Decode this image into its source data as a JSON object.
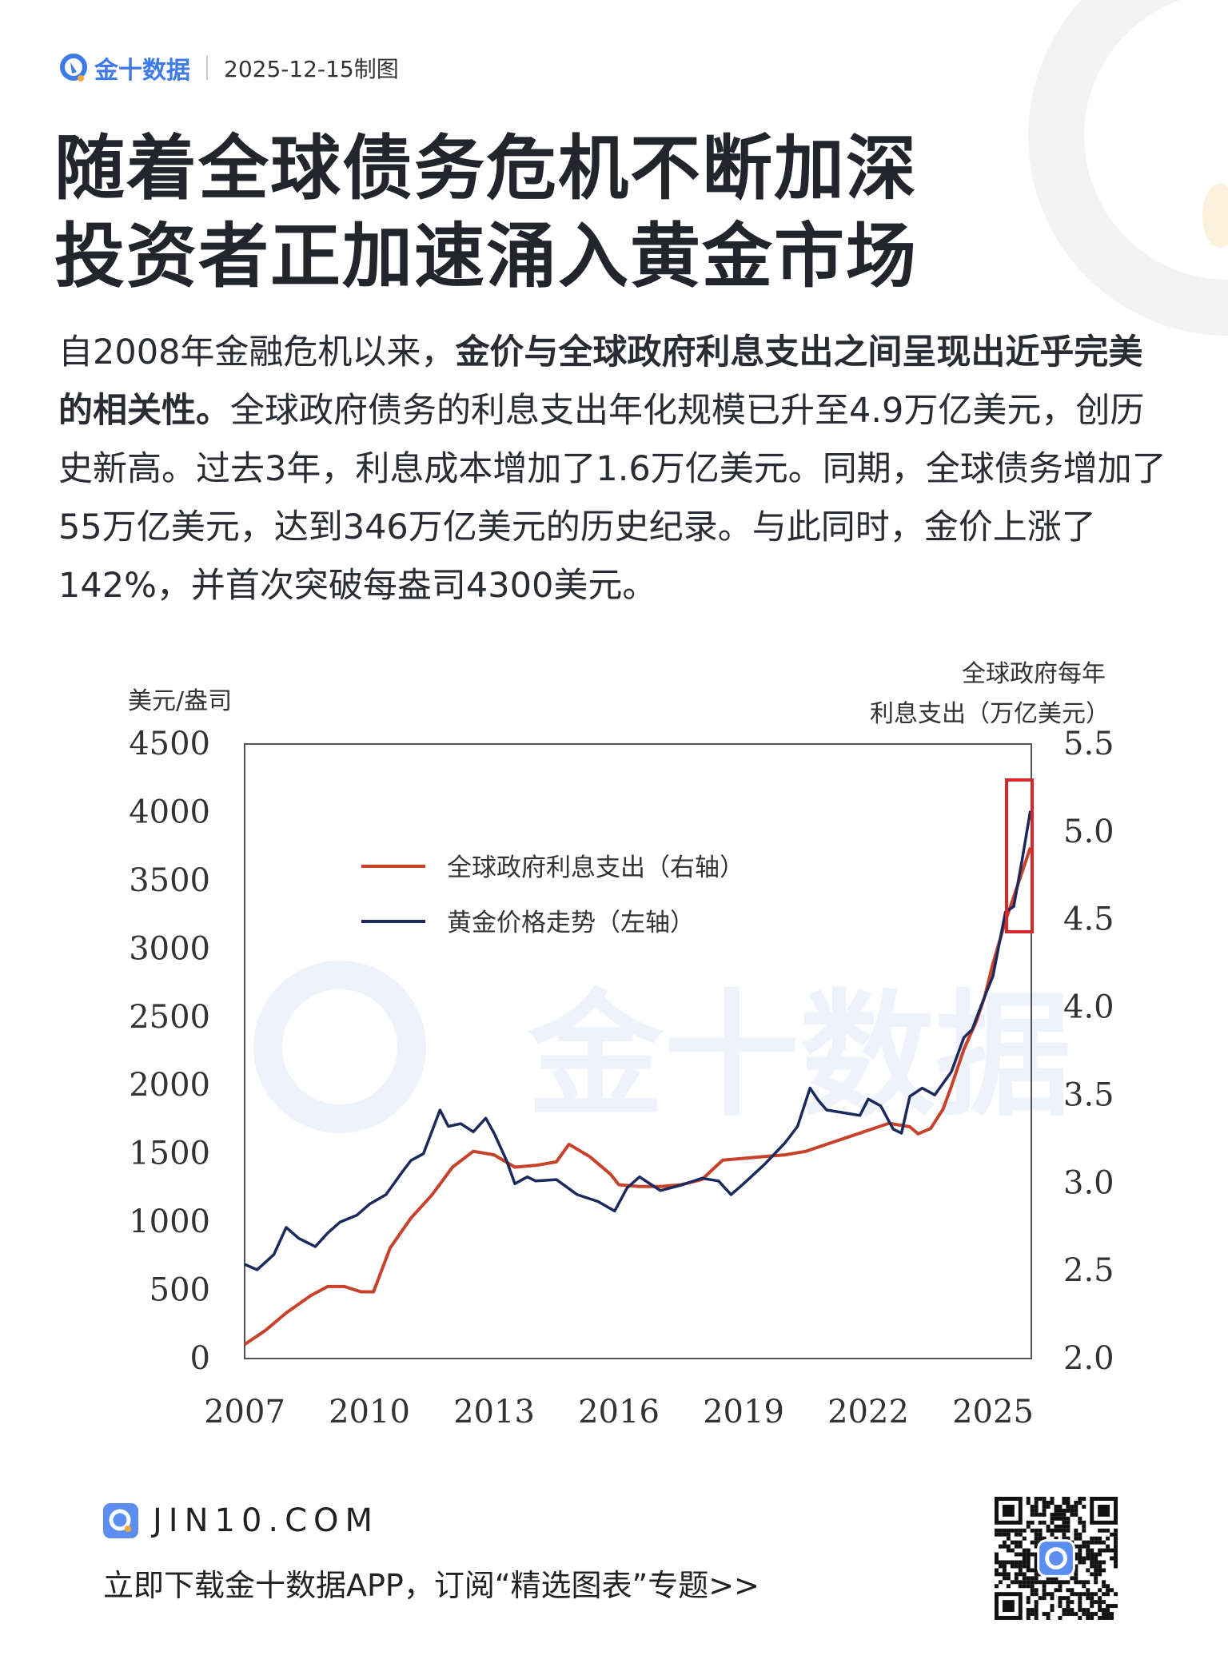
{
  "header": {
    "brand": "金十数据",
    "date": "2025-12-15制图"
  },
  "title": {
    "line1": "随着全球债务危机不断加深",
    "line2": "投资者正加速涌入黄金市场"
  },
  "paragraph": [
    {
      "text": "自2008年金融危机以来，",
      "bold": false
    },
    {
      "text": "金价与全球政府利息支出之间呈现出近乎完美的相关性。",
      "bold": true
    },
    {
      "text": "全球政府债务的利息支出年化规模已升至4.9万亿美元，创历史新高。过去3年，利息成本增加了1.6万亿美元。同期，全球债务增加了55万亿美元，达到346万亿美元的历史纪录。与此同时，金价上涨了142%，并首次突破每盎司4300美元。",
      "bold": false
    }
  ],
  "chart_data": {
    "type": "line",
    "ylabel_left": "美元/盎司",
    "ylabel_right_line1": "全球政府每年",
    "ylabel_right_line2": "利息支出（万亿美元）",
    "xticks": [
      "2007",
      "2010",
      "2013",
      "2016",
      "2019",
      "2022",
      "2025"
    ],
    "xlim": [
      2007,
      2025.92
    ],
    "yticks_left": [
      "0",
      "500",
      "1000",
      "1500",
      "2000",
      "2500",
      "3000",
      "3500",
      "4000",
      "4500"
    ],
    "ylim_left": [
      0,
      4500
    ],
    "yticks_right": [
      "2.0",
      "2.5",
      "3.0",
      "3.5",
      "4.0",
      "4.5",
      "5.0",
      "5.5"
    ],
    "ylim_right": [
      2.0,
      5.5
    ],
    "grid": false,
    "legend_position": "top-left",
    "series": [
      {
        "name": "全球政府利息支出（右轴）",
        "axis": "right",
        "color": "#c8412b",
        "x": [
          2007,
          2007.5,
          2008,
          2008.6,
          2009,
          2009.4,
          2009.8,
          2010.1,
          2010.5,
          2011,
          2011.5,
          2012,
          2012.5,
          2013,
          2013.5,
          2014,
          2014.5,
          2014.8,
          2015.3,
          2015.8,
          2016,
          2016.5,
          2017,
          2017.5,
          2018,
          2018.5,
          2019,
          2019.5,
          2020,
          2020.5,
          2021,
          2021.5,
          2022,
          2022.5,
          2023,
          2023.2,
          2023.5,
          2023.8,
          2024,
          2024.3,
          2024.6,
          2024.8,
          2025,
          2025.3,
          2025.6,
          2025.9
        ],
        "y": [
          2.08,
          2.16,
          2.26,
          2.36,
          2.41,
          2.41,
          2.38,
          2.38,
          2.63,
          2.8,
          2.93,
          3.09,
          3.18,
          3.16,
          3.09,
          3.1,
          3.12,
          3.22,
          3.15,
          3.05,
          2.99,
          2.98,
          2.98,
          2.99,
          3.02,
          3.13,
          3.14,
          3.15,
          3.16,
          3.18,
          3.22,
          3.26,
          3.3,
          3.34,
          3.32,
          3.28,
          3.31,
          3.42,
          3.55,
          3.76,
          3.92,
          4.06,
          4.25,
          4.49,
          4.7,
          4.91
        ]
      },
      {
        "name": "黄金价格走势（左轴）",
        "axis": "left",
        "color": "#1b2a5c",
        "x": [
          2007,
          2007.3,
          2007.7,
          2008,
          2008.3,
          2008.7,
          2009,
          2009.3,
          2009.7,
          2010,
          2010.4,
          2010.8,
          2011,
          2011.3,
          2011.7,
          2011.9,
          2012.2,
          2012.5,
          2012.8,
          2013,
          2013.3,
          2013.5,
          2013.8,
          2014,
          2014.5,
          2015,
          2015.5,
          2015.9,
          2016.2,
          2016.5,
          2016.8,
          2017,
          2017.5,
          2018,
          2018.4,
          2018.7,
          2019,
          2019.5,
          2020,
          2020.3,
          2020.6,
          2020.8,
          2021,
          2021.4,
          2021.8,
          2022,
          2022.3,
          2022.6,
          2022.8,
          2023,
          2023.3,
          2023.6,
          2024,
          2024.3,
          2024.5,
          2024.8,
          2025,
          2025.3,
          2025.5,
          2025.7,
          2025.9
        ],
        "y": [
          690,
          650,
          760,
          960,
          880,
          820,
          920,
          1000,
          1050,
          1130,
          1200,
          1370,
          1450,
          1500,
          1820,
          1700,
          1720,
          1660,
          1760,
          1650,
          1450,
          1280,
          1330,
          1300,
          1310,
          1200,
          1150,
          1080,
          1250,
          1330,
          1270,
          1230,
          1270,
          1320,
          1300,
          1200,
          1280,
          1420,
          1580,
          1700,
          1980,
          1890,
          1820,
          1800,
          1780,
          1900,
          1850,
          1680,
          1650,
          1920,
          1980,
          1930,
          2100,
          2350,
          2410,
          2650,
          2800,
          3270,
          3310,
          3650,
          4010
        ]
      }
    ]
  },
  "footer": {
    "site": "JIN10.COM",
    "cta": "立即下载金十数据APP，订阅“精选图表”专题>>"
  }
}
